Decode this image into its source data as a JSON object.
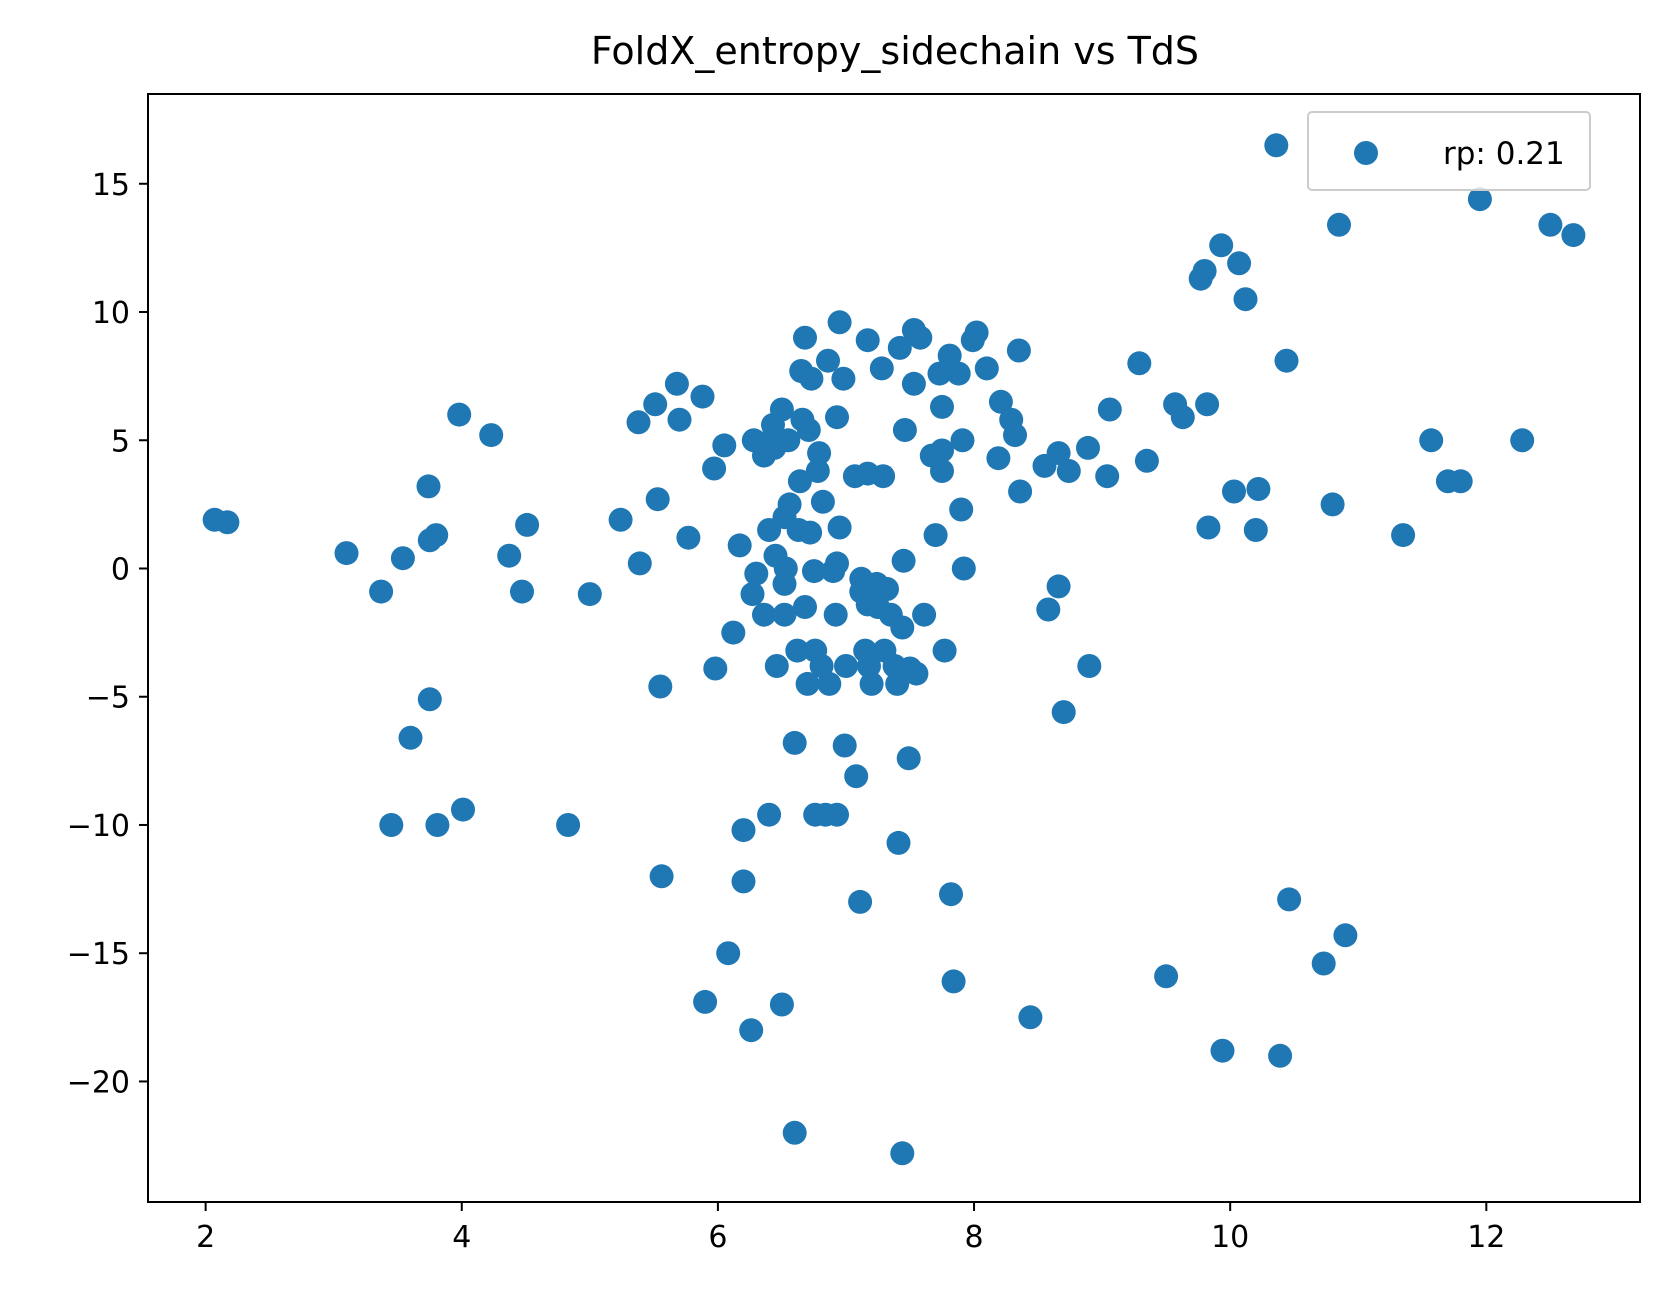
{
  "chart_data": {
    "type": "scatter",
    "title": "FoldX_entropy_sidechain vs TdS",
    "xlabel": "",
    "ylabel": "",
    "xlim": [
      1.55,
      13.2
    ],
    "ylim": [
      -24.7,
      18.5
    ],
    "xticks": [
      2,
      4,
      6,
      8,
      10,
      12
    ],
    "yticks": [
      -20,
      -15,
      -10,
      -5,
      0,
      5,
      10,
      15
    ],
    "xtick_labels": [
      "2",
      "4",
      "6",
      "8",
      "10",
      "12"
    ],
    "ytick_labels": [
      "−20",
      "−15",
      "−10",
      "−5",
      "0",
      "5",
      "10",
      "15"
    ],
    "grid": false,
    "legend_position": "top-right",
    "series": [
      {
        "name": "rp: 0.21",
        "color": "#1f77b4",
        "points": [
          [
            2.07,
            1.9
          ],
          [
            2.17,
            1.8
          ],
          [
            3.1,
            0.6
          ],
          [
            3.37,
            -0.9
          ],
          [
            3.45,
            -10.0
          ],
          [
            3.54,
            0.4
          ],
          [
            3.6,
            -6.6
          ],
          [
            3.74,
            3.2
          ],
          [
            3.75,
            1.1
          ],
          [
            3.75,
            -5.1
          ],
          [
            3.8,
            1.3
          ],
          [
            3.81,
            -10.0
          ],
          [
            3.98,
            6.0
          ],
          [
            4.01,
            -9.4
          ],
          [
            4.23,
            5.2
          ],
          [
            4.37,
            0.5
          ],
          [
            4.47,
            -0.9
          ],
          [
            4.51,
            1.7
          ],
          [
            4.83,
            -10.0
          ],
          [
            5.0,
            -1.0
          ],
          [
            5.24,
            1.9
          ],
          [
            5.38,
            5.7
          ],
          [
            5.39,
            0.2
          ],
          [
            5.51,
            6.4
          ],
          [
            5.53,
            2.7
          ],
          [
            5.55,
            -4.6
          ],
          [
            5.56,
            -12.0
          ],
          [
            5.68,
            7.2
          ],
          [
            5.7,
            5.8
          ],
          [
            5.77,
            1.2
          ],
          [
            5.88,
            6.7
          ],
          [
            5.9,
            -16.9
          ],
          [
            5.97,
            3.9
          ],
          [
            5.98,
            -3.9
          ],
          [
            6.05,
            4.8
          ],
          [
            6.08,
            -15.0
          ],
          [
            6.12,
            -2.5
          ],
          [
            6.17,
            0.9
          ],
          [
            6.2,
            -10.2
          ],
          [
            6.2,
            -12.2
          ],
          [
            6.26,
            -18.0
          ],
          [
            6.27,
            -1.0
          ],
          [
            6.28,
            5.0
          ],
          [
            6.3,
            -0.2
          ],
          [
            6.36,
            4.4
          ],
          [
            6.36,
            -1.8
          ],
          [
            6.38,
            4.9
          ],
          [
            6.4,
            1.5
          ],
          [
            6.4,
            -9.6
          ],
          [
            6.43,
            5.6
          ],
          [
            6.44,
            4.7
          ],
          [
            6.45,
            0.5
          ],
          [
            6.46,
            -3.8
          ],
          [
            6.5,
            6.2
          ],
          [
            6.5,
            -17.0
          ],
          [
            6.52,
            2.0
          ],
          [
            6.52,
            -0.6
          ],
          [
            6.52,
            -1.8
          ],
          [
            6.53,
            0.0
          ],
          [
            6.55,
            5.0
          ],
          [
            6.56,
            2.5
          ],
          [
            6.6,
            -6.8
          ],
          [
            6.6,
            -22.0
          ],
          [
            6.62,
            -3.2
          ],
          [
            6.63,
            1.5
          ],
          [
            6.64,
            3.4
          ],
          [
            6.65,
            7.7
          ],
          [
            6.66,
            5.8
          ],
          [
            6.68,
            9.0
          ],
          [
            6.68,
            -1.5
          ],
          [
            6.7,
            -4.5
          ],
          [
            6.71,
            5.4
          ],
          [
            6.72,
            1.4
          ],
          [
            6.73,
            7.4
          ],
          [
            6.75,
            -0.1
          ],
          [
            6.76,
            -3.2
          ],
          [
            6.76,
            -9.6
          ],
          [
            6.78,
            3.8
          ],
          [
            6.79,
            4.5
          ],
          [
            6.81,
            -3.8
          ],
          [
            6.82,
            2.6
          ],
          [
            6.84,
            -9.6
          ],
          [
            6.86,
            8.1
          ],
          [
            6.87,
            -4.5
          ],
          [
            6.9,
            -0.1
          ],
          [
            6.92,
            -1.8
          ],
          [
            6.93,
            0.2
          ],
          [
            6.93,
            5.9
          ],
          [
            6.93,
            -9.6
          ],
          [
            6.95,
            9.6
          ],
          [
            6.95,
            1.6
          ],
          [
            6.98,
            7.4
          ],
          [
            6.99,
            -6.9
          ],
          [
            7.0,
            -3.8
          ],
          [
            7.07,
            3.6
          ],
          [
            7.08,
            -8.1
          ],
          [
            7.11,
            -13.0
          ],
          [
            7.12,
            -0.4
          ],
          [
            7.12,
            -0.9
          ],
          [
            7.15,
            -3.2
          ],
          [
            7.17,
            8.9
          ],
          [
            7.17,
            3.7
          ],
          [
            7.17,
            -1.4
          ],
          [
            7.18,
            -3.8
          ],
          [
            7.2,
            -4.5
          ],
          [
            7.24,
            -0.6
          ],
          [
            7.25,
            -1.5
          ],
          [
            7.28,
            7.8
          ],
          [
            7.29,
            3.6
          ],
          [
            7.3,
            -3.2
          ],
          [
            7.32,
            -0.8
          ],
          [
            7.35,
            -1.8
          ],
          [
            7.38,
            -3.8
          ],
          [
            7.4,
            -4.5
          ],
          [
            7.41,
            -10.7
          ],
          [
            7.42,
            8.6
          ],
          [
            7.44,
            -22.8
          ],
          [
            7.44,
            -2.3
          ],
          [
            7.45,
            0.3
          ],
          [
            7.46,
            5.4
          ],
          [
            7.49,
            -7.4
          ],
          [
            7.5,
            -3.9
          ],
          [
            7.53,
            9.3
          ],
          [
            7.53,
            7.2
          ],
          [
            7.55,
            -4.1
          ],
          [
            7.58,
            9.0
          ],
          [
            7.61,
            -1.8
          ],
          [
            7.67,
            4.4
          ],
          [
            7.7,
            1.3
          ],
          [
            7.73,
            7.6
          ],
          [
            7.75,
            4.6
          ],
          [
            7.75,
            3.8
          ],
          [
            7.75,
            6.3
          ],
          [
            7.77,
            -3.2
          ],
          [
            7.81,
            8.3
          ],
          [
            7.82,
            -12.7
          ],
          [
            7.84,
            -16.1
          ],
          [
            7.88,
            7.6
          ],
          [
            7.9,
            2.3
          ],
          [
            7.91,
            5.0
          ],
          [
            7.92,
            0.0
          ],
          [
            7.99,
            8.9
          ],
          [
            8.02,
            9.2
          ],
          [
            8.1,
            7.8
          ],
          [
            8.19,
            4.3
          ],
          [
            8.21,
            6.5
          ],
          [
            8.29,
            5.8
          ],
          [
            8.32,
            5.2
          ],
          [
            8.35,
            8.5
          ],
          [
            8.36,
            3.0
          ],
          [
            8.44,
            -17.5
          ],
          [
            8.55,
            4.0
          ],
          [
            8.58,
            -1.6
          ],
          [
            8.66,
            -0.7
          ],
          [
            8.66,
            4.5
          ],
          [
            8.7,
            -5.6
          ],
          [
            8.74,
            3.8
          ],
          [
            8.89,
            4.7
          ],
          [
            8.9,
            -3.8
          ],
          [
            9.04,
            3.6
          ],
          [
            9.06,
            6.2
          ],
          [
            9.29,
            8.0
          ],
          [
            9.35,
            4.2
          ],
          [
            9.5,
            -15.9
          ],
          [
            9.57,
            6.4
          ],
          [
            9.63,
            5.9
          ],
          [
            9.77,
            11.3
          ],
          [
            9.8,
            11.6
          ],
          [
            9.82,
            6.4
          ],
          [
            9.83,
            1.6
          ],
          [
            9.93,
            12.6
          ],
          [
            9.94,
            -18.8
          ],
          [
            10.03,
            3.0
          ],
          [
            10.07,
            11.9
          ],
          [
            10.12,
            10.5
          ],
          [
            10.2,
            1.5
          ],
          [
            10.22,
            3.1
          ],
          [
            10.36,
            16.5
          ],
          [
            10.39,
            -19.0
          ],
          [
            10.44,
            8.1
          ],
          [
            10.46,
            -12.9
          ],
          [
            10.73,
            -15.4
          ],
          [
            10.8,
            2.5
          ],
          [
            10.85,
            13.4
          ],
          [
            10.9,
            -14.3
          ],
          [
            11.35,
            1.3
          ],
          [
            11.57,
            5.0
          ],
          [
            11.7,
            3.4
          ],
          [
            11.8,
            3.4
          ],
          [
            11.95,
            14.4
          ],
          [
            12.28,
            5.0
          ],
          [
            12.5,
            13.4
          ],
          [
            12.68,
            13.0
          ]
        ]
      }
    ]
  }
}
